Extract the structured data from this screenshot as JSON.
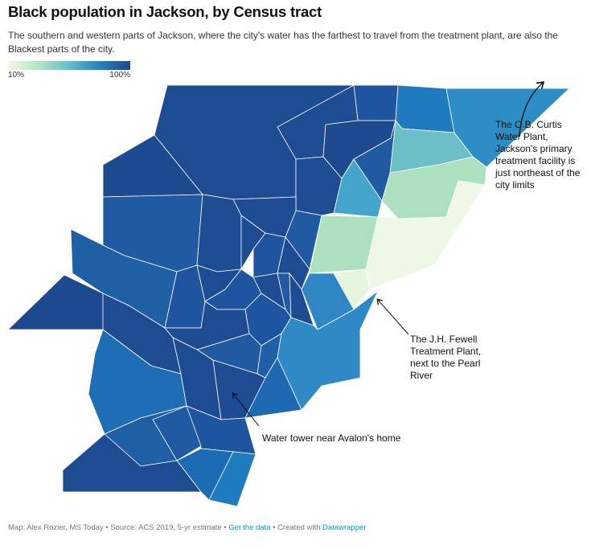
{
  "header": {
    "title": "Black population in Jackson, by Census tract",
    "subtitle": "The southern and western parts of Jackson, where the city's water has the farthest to travel from the treatment plant, are also the Blackest parts of the city."
  },
  "legend": {
    "min_label": "10%",
    "max_label": "100%",
    "color_scale": [
      "#f1f9e8",
      "#b5e4c4",
      "#6cc1c8",
      "#2d86c1",
      "#1c4a8f"
    ]
  },
  "annotations": {
    "ob_curtis": "The O.B. Curtis Water Plant, Jackson's primary treatment facility is just northeast of the city limits",
    "jh_fewell": "The J.H. Fewell Treatment Plant, next to the Pearl River",
    "water_tower": "Water tower near Avalon's home"
  },
  "footer": {
    "credit": "Map: Alex Rozier, MS Today • Source: ACS 2019, 5-yr estimate • ",
    "get_data": "Get the data",
    "separator": " • Created with ",
    "datawrapper": "Datawrapper"
  },
  "colors": {
    "darkest": "#1c4a8f",
    "dark": "#1f5da3",
    "mid_dark": "#2a80bf",
    "mid": "#47a6c9",
    "teal": "#6cbfc6",
    "light_green": "#ace0be",
    "pale": "#eef7e5"
  }
}
